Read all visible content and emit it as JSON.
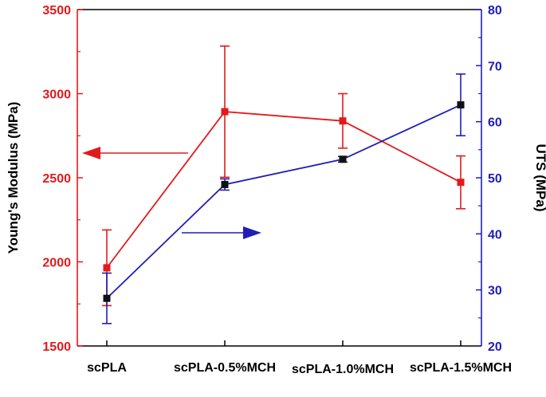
{
  "chart_data": {
    "type": "line",
    "categories": [
      "scPLA",
      "scPLA-0.5%MCH",
      "scPLA-1.0%MCH",
      "scPLA-1.5%MCH"
    ],
    "y_left": {
      "label": "Young's Modulus (MPa)",
      "range": [
        1500,
        3500
      ],
      "ticks": [
        1500,
        2000,
        2500,
        3000,
        3500
      ],
      "color": "#e31a1c"
    },
    "y_right": {
      "label": "UTS (MPa)",
      "range": [
        20,
        80
      ],
      "ticks": [
        20,
        30,
        40,
        50,
        60,
        70,
        80
      ],
      "color": "#1f1fb4"
    },
    "series": [
      {
        "axis": "left",
        "color": "#e31a1c",
        "marker_color": "#e31a1c",
        "values": [
          1965,
          2893,
          2838,
          2473
        ],
        "errors": [
          225,
          390,
          162,
          157
        ]
      },
      {
        "axis": "right",
        "color": "#1f1fb4",
        "marker_color": "#111111",
        "values": [
          28.5,
          48.8,
          53.3,
          63.0
        ],
        "errors": [
          4.5,
          1.0,
          0.5,
          5.5
        ]
      }
    ],
    "annotations": [
      {
        "type": "arrow",
        "direction": "left",
        "color": "#e31a1c",
        "points_to": "left-axis"
      },
      {
        "type": "arrow",
        "direction": "right",
        "color": "#1f1fb4",
        "points_to": "right-axis"
      }
    ],
    "grid": false
  }
}
